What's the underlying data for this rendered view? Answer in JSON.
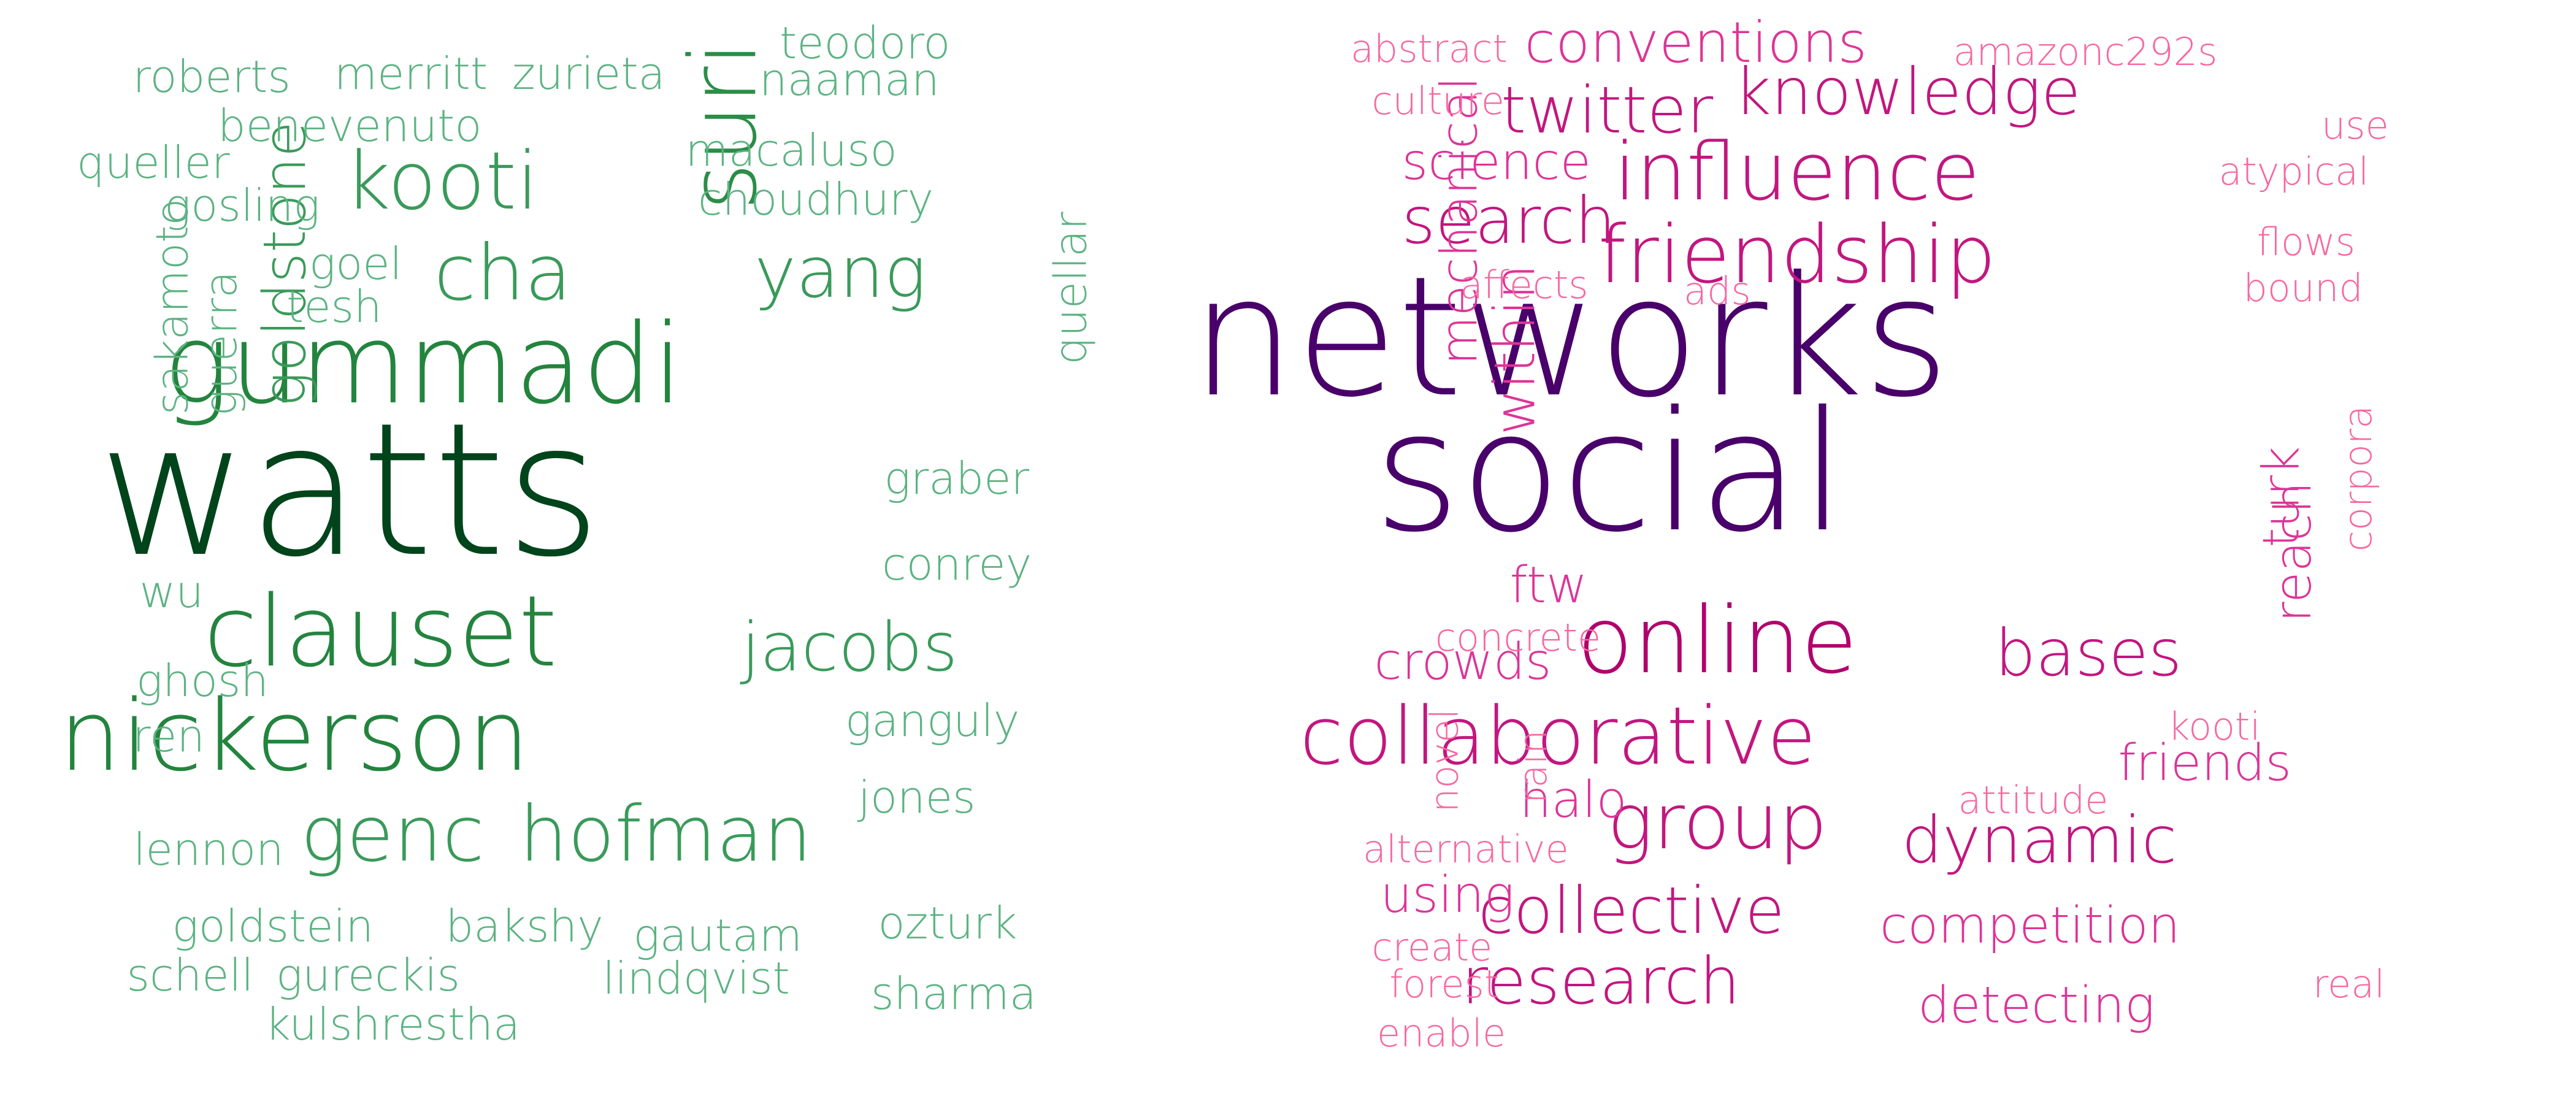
{
  "clouds": [
    {
      "words": [
        {
          "text": "watts",
          "color": "#00441b"
        },
        {
          "text": "gummadi",
          "color": "#23843e"
        },
        {
          "text": "nickerson",
          "color": "#23843e"
        },
        {
          "text": "clauset",
          "color": "#23843e"
        },
        {
          "text": "suri",
          "color": "#2b8d47"
        },
        {
          "text": "kooti",
          "color": "#3a9a5a"
        },
        {
          "text": "hofman",
          "color": "#3a9a5a"
        },
        {
          "text": "genc",
          "color": "#3a9a5a"
        },
        {
          "text": "cha",
          "color": "#3a9a5a"
        },
        {
          "text": "yang",
          "color": "#3a9a5a"
        },
        {
          "text": "jacobs",
          "color": "#3a9a5a"
        },
        {
          "text": "goldstone",
          "color": "#3a9a5a"
        },
        {
          "text": "roberts",
          "color": "#5cb382"
        },
        {
          "text": "merritt",
          "color": "#5cb382"
        },
        {
          "text": "zurieta",
          "color": "#5cb382"
        },
        {
          "text": "teodoro",
          "color": "#5cb382"
        },
        {
          "text": "naaman",
          "color": "#5cb382"
        },
        {
          "text": "benevenuto",
          "color": "#5cb382"
        },
        {
          "text": "macaluso",
          "color": "#5cb382"
        },
        {
          "text": "queller",
          "color": "#5cb382"
        },
        {
          "text": "gosling",
          "color": "#5cb382"
        },
        {
          "text": "choudhury",
          "color": "#5cb382"
        },
        {
          "text": "goel",
          "color": "#5cb382"
        },
        {
          "text": "tesh",
          "color": "#5cb382"
        },
        {
          "text": "sakamoto",
          "color": "#5cb382"
        },
        {
          "text": "guerra",
          "color": "#5cb382"
        },
        {
          "text": "quellar",
          "color": "#5cb382"
        },
        {
          "text": "graber",
          "color": "#5cb382"
        },
        {
          "text": "conrey",
          "color": "#5cb382"
        },
        {
          "text": "wu",
          "color": "#5cb382"
        },
        {
          "text": "ghosh",
          "color": "#5cb382"
        },
        {
          "text": "ren",
          "color": "#5cb382"
        },
        {
          "text": "ganguly",
          "color": "#5cb382"
        },
        {
          "text": "jones",
          "color": "#5cb382"
        },
        {
          "text": "lennon",
          "color": "#5cb382"
        },
        {
          "text": "goldstein",
          "color": "#5cb382"
        },
        {
          "text": "bakshy",
          "color": "#5cb382"
        },
        {
          "text": "gautam",
          "color": "#5cb382"
        },
        {
          "text": "ozturk",
          "color": "#5cb382"
        },
        {
          "text": "schell",
          "color": "#5cb382"
        },
        {
          "text": "gureckis",
          "color": "#5cb382"
        },
        {
          "text": "lindqvist",
          "color": "#5cb382"
        },
        {
          "text": "sharma",
          "color": "#5cb382"
        },
        {
          "text": "kulshrestha",
          "color": "#5cb382"
        }
      ]
    },
    {
      "words": [
        {
          "text": "networks",
          "color": "#49006a"
        },
        {
          "text": "social",
          "color": "#49006a"
        },
        {
          "text": "online",
          "color": "#b0006e"
        },
        {
          "text": "collaborative",
          "color": "#c2167f"
        },
        {
          "text": "influence",
          "color": "#c2167f"
        },
        {
          "text": "friendship",
          "color": "#c2167f"
        },
        {
          "text": "group",
          "color": "#c2167f"
        },
        {
          "text": "knowledge",
          "color": "#c2167f"
        },
        {
          "text": "twitter",
          "color": "#c2167f"
        },
        {
          "text": "search",
          "color": "#c2167f"
        },
        {
          "text": "bases",
          "color": "#c2167f"
        },
        {
          "text": "dynamic",
          "color": "#c2167f"
        },
        {
          "text": "collective",
          "color": "#c2167f"
        },
        {
          "text": "research",
          "color": "#c2167f"
        },
        {
          "text": "conventions",
          "color": "#dd3497"
        },
        {
          "text": "within",
          "color": "#dd3497"
        },
        {
          "text": "mechanical",
          "color": "#dd3497"
        },
        {
          "text": "science",
          "color": "#dd3497"
        },
        {
          "text": "crowds",
          "color": "#dd3497"
        },
        {
          "text": "halo",
          "color": "#dd3497"
        },
        {
          "text": "using",
          "color": "#dd3497"
        },
        {
          "text": "competition",
          "color": "#dd3497"
        },
        {
          "text": "detecting",
          "color": "#dd3497"
        },
        {
          "text": "friends",
          "color": "#dd3497"
        },
        {
          "text": "reach",
          "color": "#dd3497"
        },
        {
          "text": "turk",
          "color": "#dd3497"
        },
        {
          "text": "ftw",
          "color": "#dd3497"
        },
        {
          "text": "abstract",
          "color": "#f768a1"
        },
        {
          "text": "amazonc292s",
          "color": "#f768a1"
        },
        {
          "text": "culture",
          "color": "#f768a1"
        },
        {
          "text": "use",
          "color": "#f768a1"
        },
        {
          "text": "atypical",
          "color": "#f768a1"
        },
        {
          "text": "flows",
          "color": "#f768a1"
        },
        {
          "text": "bound",
          "color": "#f768a1"
        },
        {
          "text": "affects",
          "color": "#f768a1"
        },
        {
          "text": "ads",
          "color": "#f768a1"
        },
        {
          "text": "corpora",
          "color": "#f768a1"
        },
        {
          "text": "concrete",
          "color": "#f768a1"
        },
        {
          "text": "kooti",
          "color": "#f768a1"
        },
        {
          "text": "attitude",
          "color": "#f768a1"
        },
        {
          "text": "novel",
          "color": "#f768a1"
        },
        {
          "text": "rain",
          "color": "#f768a1"
        },
        {
          "text": "alternative",
          "color": "#f768a1"
        },
        {
          "text": "create",
          "color": "#f768a1"
        },
        {
          "text": "forest",
          "color": "#f768a1"
        },
        {
          "text": "enable",
          "color": "#f768a1"
        },
        {
          "text": "real",
          "color": "#f768a1"
        }
      ]
    }
  ]
}
